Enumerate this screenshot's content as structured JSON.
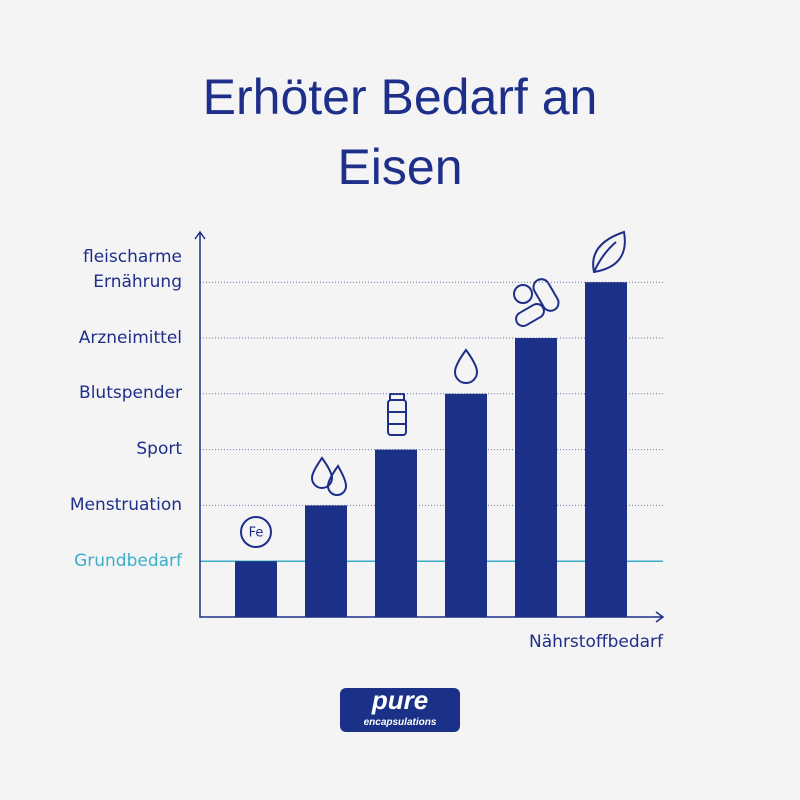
{
  "chart_data": {
    "type": "bar",
    "title": "Erhöter Bedarf an Eisen",
    "x_label": "Nährstoffbedarf",
    "annotation": "Fe",
    "categories": [
      null,
      null,
      null,
      null,
      null,
      null
    ],
    "values": [
      1,
      2,
      3,
      4,
      5,
      6
    ],
    "color": "#1a3187",
    "ylim": [
      0,
      6.9
    ],
    "yticks": [
      {
        "value": 1,
        "label": "Grundbedarf"
      },
      {
        "value": 2,
        "label": "Menstruation"
      },
      {
        "value": 3,
        "label": "Sport"
      },
      {
        "value": 4,
        "label": "Blutspender"
      },
      {
        "value": 5,
        "label": "Arzneimittel"
      },
      {
        "value": 6,
        "label": "fleischarme Ernährung"
      }
    ],
    "highlight_color": "#3aaec8",
    "grid": true
  },
  "brand": {
    "name": "pure",
    "tagline": "encapsulations"
  }
}
